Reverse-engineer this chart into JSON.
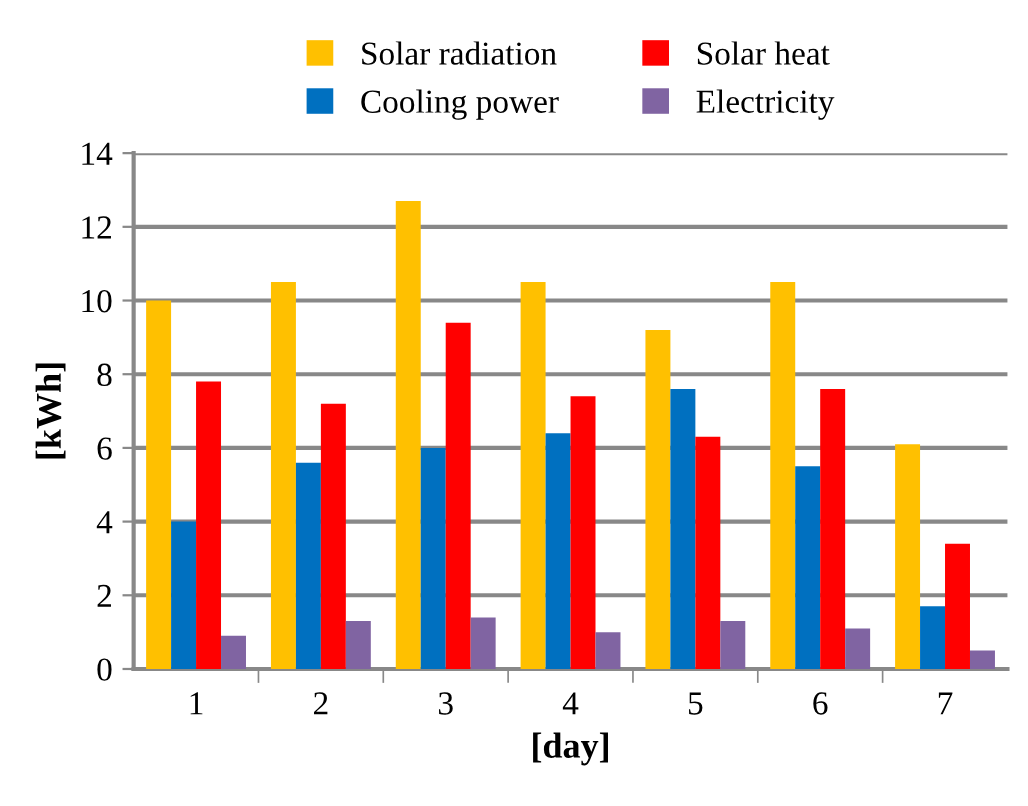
{
  "chart_data": {
    "type": "bar",
    "xlabel": "[day]",
    "ylabel": "[kWh]",
    "categories": [
      "1",
      "2",
      "3",
      "4",
      "5",
      "6",
      "7"
    ],
    "series": [
      {
        "name": "Solar radiation",
        "color": "#ffc000",
        "values": [
          10.0,
          10.5,
          12.7,
          10.5,
          9.2,
          10.5,
          6.1
        ]
      },
      {
        "name": "Cooling power",
        "color": "#0070c0",
        "values": [
          4.0,
          5.6,
          6.0,
          6.4,
          7.6,
          5.5,
          1.7
        ]
      },
      {
        "name": "Solar heat",
        "color": "#ff0000",
        "values": [
          7.8,
          7.2,
          9.4,
          7.4,
          6.3,
          7.6,
          3.4
        ]
      },
      {
        "name": "Electricity",
        "color": "#8064a2",
        "values": [
          0.9,
          1.3,
          1.4,
          1.0,
          1.3,
          1.1,
          0.5
        ]
      }
    ],
    "ylim": [
      0,
      14
    ],
    "yticks": [
      0,
      2,
      4,
      6,
      8,
      10,
      12,
      14
    ],
    "grid": "y",
    "legend": "top"
  }
}
